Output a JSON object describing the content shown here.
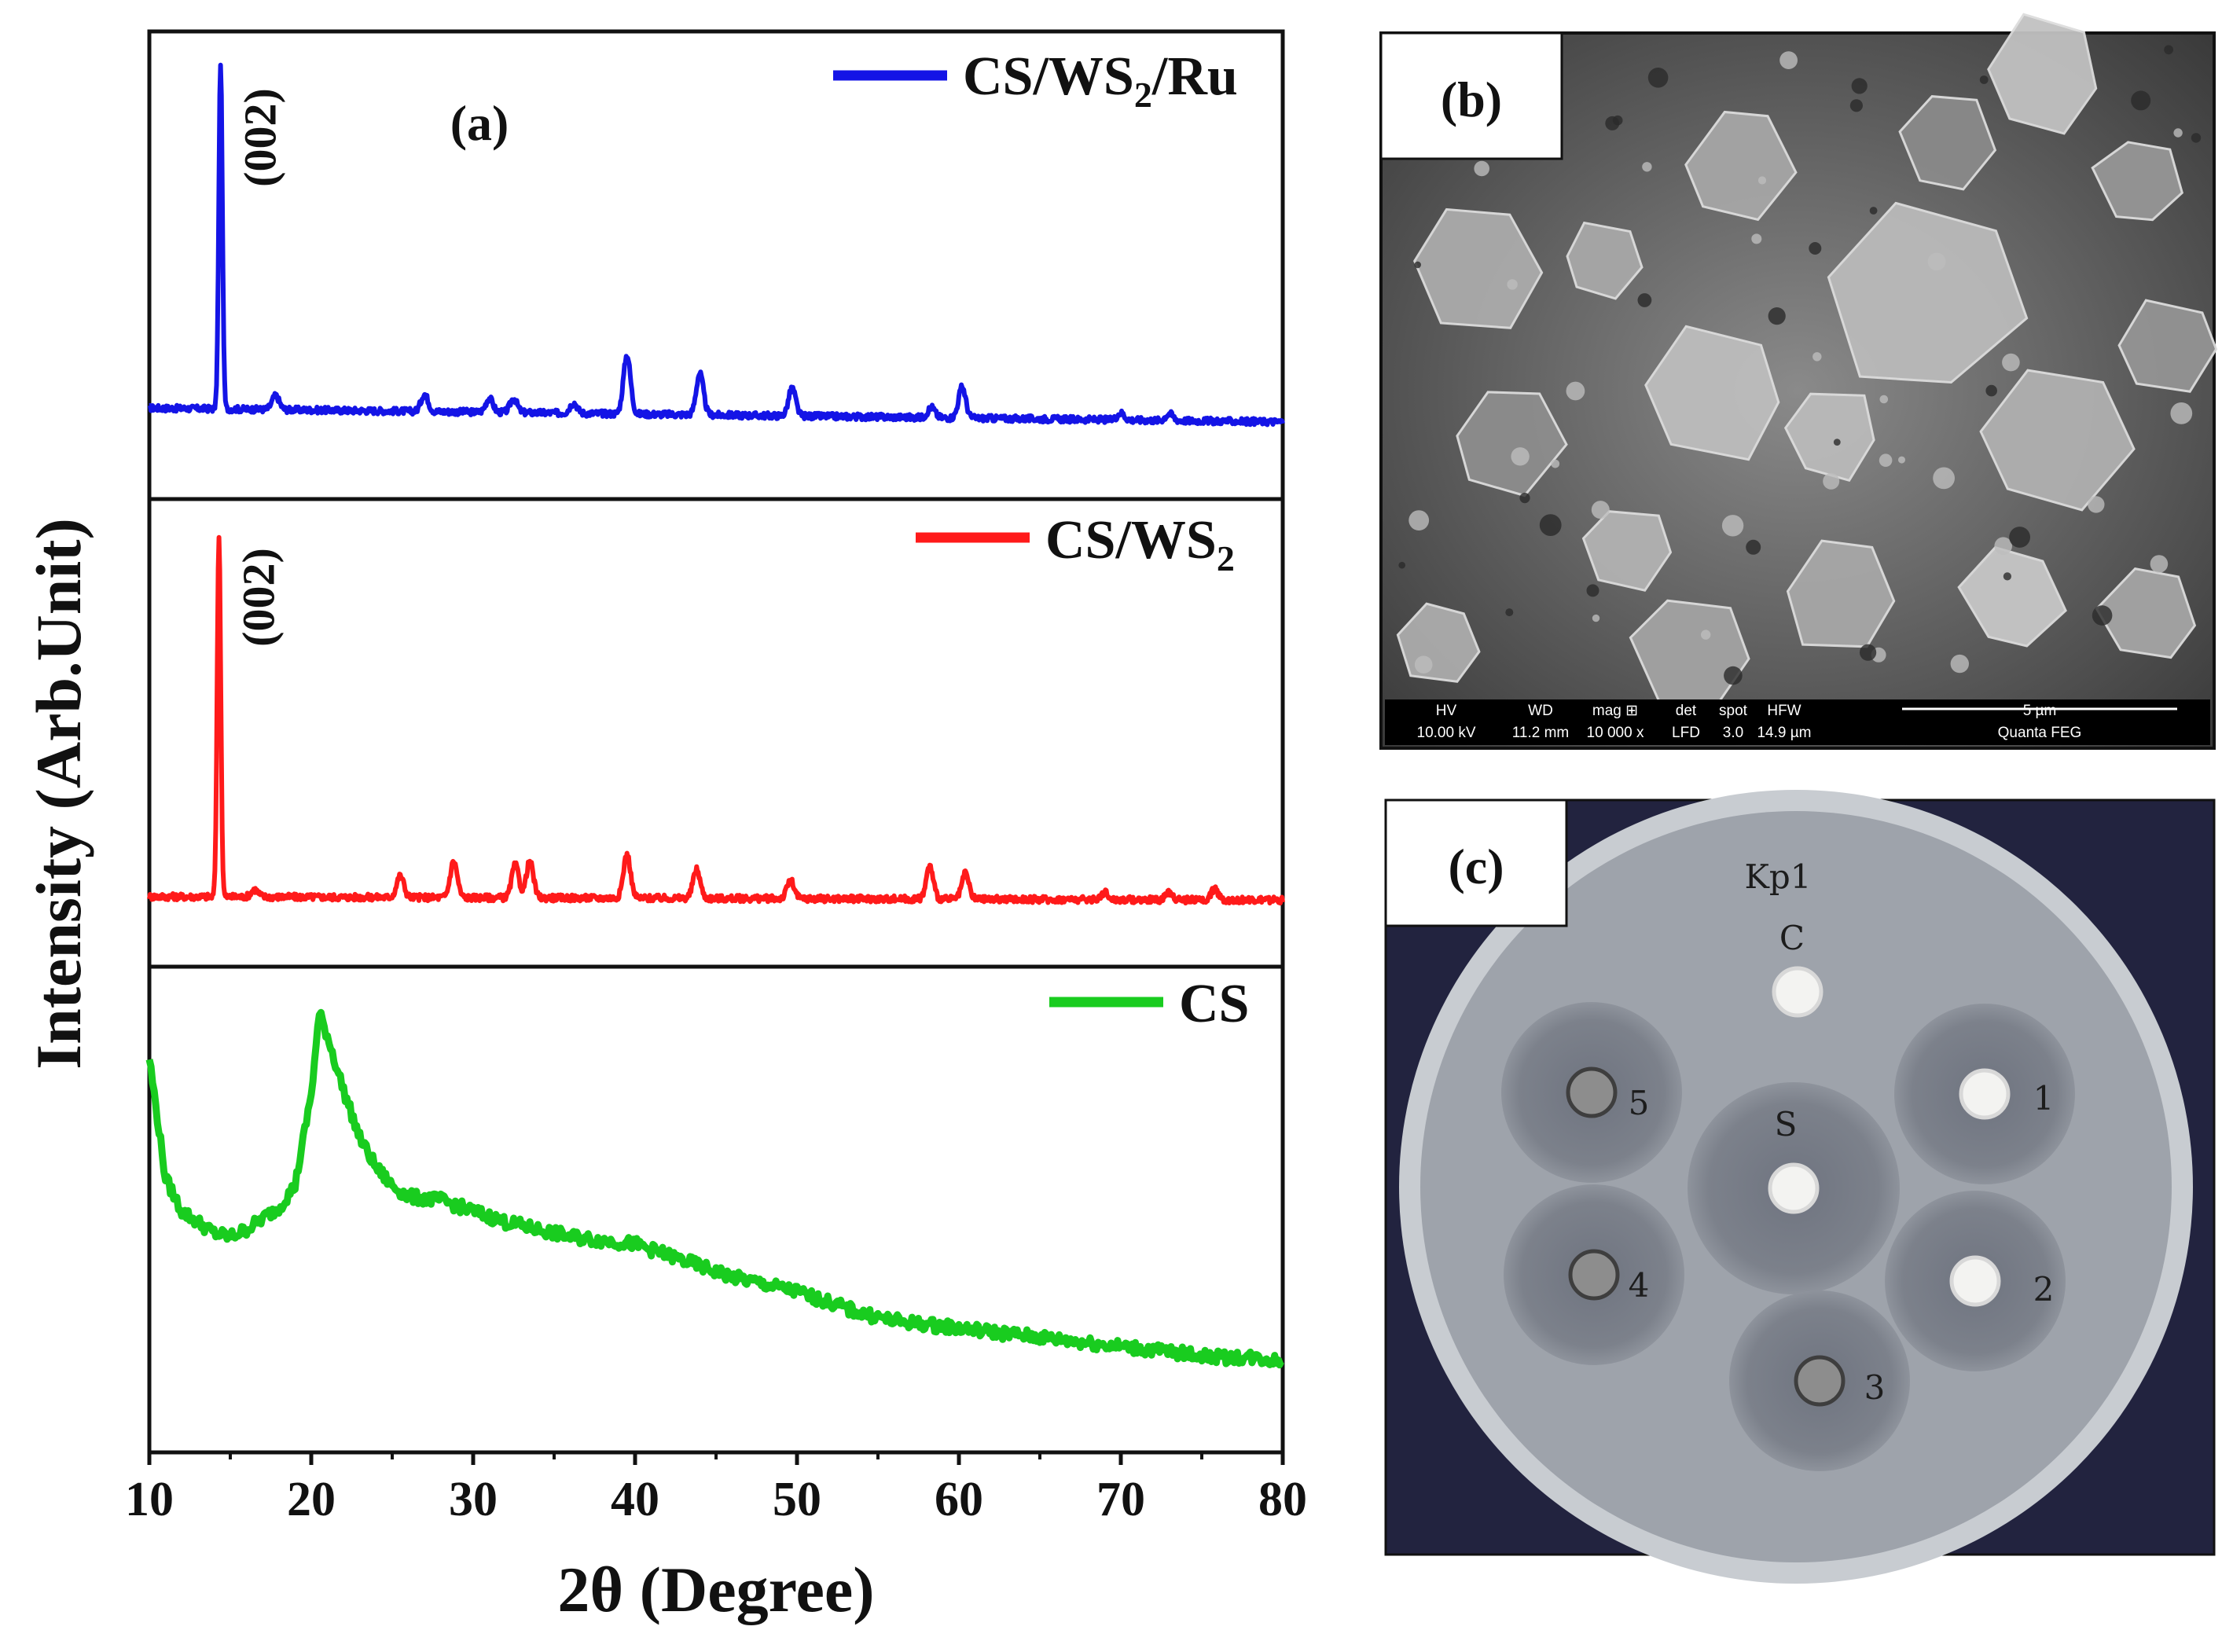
{
  "colors": {
    "cs_ws2_ru": "#1414e6",
    "cs_ws2": "#ff1a1a",
    "cs": "#19cc1f",
    "axis": "#111111",
    "plate_bg": "#22233f",
    "agar": "#9ea3ab"
  },
  "panels": {
    "a": {
      "label": "(a)"
    },
    "b": {
      "label": "(b)",
      "databar": {
        "headers": [
          "HV",
          "WD",
          "mag ⊞",
          "det",
          "spot",
          "HFW"
        ],
        "values": [
          "10.00 kV",
          "11.2 mm",
          "10 000 x",
          "LFD",
          "3.0",
          "14.9 µm"
        ],
        "scale": "5 µm",
        "instrument": "Quanta FEG"
      }
    },
    "c": {
      "label": "(c)",
      "plate_label": "Kp1",
      "disc_labels": [
        "C",
        "S",
        "1",
        "2",
        "3",
        "4",
        "5"
      ]
    }
  },
  "chart_data": {
    "type": "line",
    "xlabel": "2θ (Degree)",
    "ylabel": "Intensity (Arb.Unit)",
    "xlim": [
      10,
      80
    ],
    "xticks": [
      "10",
      "20",
      "30",
      "40",
      "50",
      "60",
      "70",
      "80"
    ],
    "yticks": "none",
    "grid": false,
    "panels_stacked": 3,
    "series": [
      {
        "name": "CS/WS2/Ru",
        "legend_main": "CS/WS",
        "legend_sub": "2",
        "legend_tail": "/Ru",
        "color": "#1414e6",
        "peak_annotation": "(002)",
        "baseline_x": [
          10,
          80
        ],
        "baseline_y": [
          0.07,
          0.03
        ],
        "peaks": [
          [
            14.4,
            1.0
          ],
          [
            17.8,
            0.04
          ],
          [
            27.0,
            0.05
          ],
          [
            31.0,
            0.04
          ],
          [
            32.5,
            0.04
          ],
          [
            36.2,
            0.03
          ],
          [
            39.5,
            0.17
          ],
          [
            44.0,
            0.12
          ],
          [
            49.7,
            0.08
          ],
          [
            58.3,
            0.03
          ],
          [
            60.2,
            0.09
          ],
          [
            70.0,
            0.02
          ],
          [
            73.0,
            0.02
          ]
        ]
      },
      {
        "name": "CS/WS2",
        "legend_main": "CS/WS",
        "legend_sub": "2",
        "legend_tail": "",
        "color": "#ff1a1a",
        "peak_annotation": "(002)",
        "baseline_x": [
          10,
          80
        ],
        "baseline_y": [
          0.02,
          0.01
        ],
        "peaks": [
          [
            14.3,
            1.0
          ],
          [
            16.5,
            0.02
          ],
          [
            25.5,
            0.06
          ],
          [
            28.8,
            0.1
          ],
          [
            32.6,
            0.09
          ],
          [
            33.5,
            0.1
          ],
          [
            39.5,
            0.12
          ],
          [
            43.8,
            0.08
          ],
          [
            49.6,
            0.05
          ],
          [
            58.2,
            0.09
          ],
          [
            60.4,
            0.07
          ],
          [
            69.0,
            0.02
          ],
          [
            73.0,
            0.02
          ],
          [
            75.8,
            0.03
          ]
        ]
      },
      {
        "name": "CS",
        "legend_main": "CS",
        "legend_sub": "",
        "legend_tail": "",
        "color": "#19cc1f",
        "peak_annotation": "",
        "x": [
          10,
          11,
          12,
          13,
          14,
          15,
          16,
          17,
          18,
          19,
          20,
          20.5,
          21,
          22,
          23,
          24,
          25,
          26,
          28,
          30,
          32,
          34,
          36,
          38,
          40,
          42,
          44,
          46,
          48,
          50,
          52,
          54,
          56,
          58,
          60,
          62,
          64,
          66,
          68,
          70,
          72,
          74,
          76,
          78,
          80
        ],
        "y": [
          0.88,
          0.55,
          0.46,
          0.43,
          0.4,
          0.39,
          0.41,
          0.44,
          0.47,
          0.53,
          0.78,
          1.0,
          0.94,
          0.79,
          0.66,
          0.58,
          0.53,
          0.5,
          0.49,
          0.46,
          0.43,
          0.41,
          0.39,
          0.38,
          0.37,
          0.34,
          0.31,
          0.28,
          0.26,
          0.24,
          0.21,
          0.18,
          0.16,
          0.15,
          0.14,
          0.13,
          0.12,
          0.11,
          0.1,
          0.09,
          0.08,
          0.07,
          0.06,
          0.06,
          0.05
        ]
      }
    ]
  }
}
